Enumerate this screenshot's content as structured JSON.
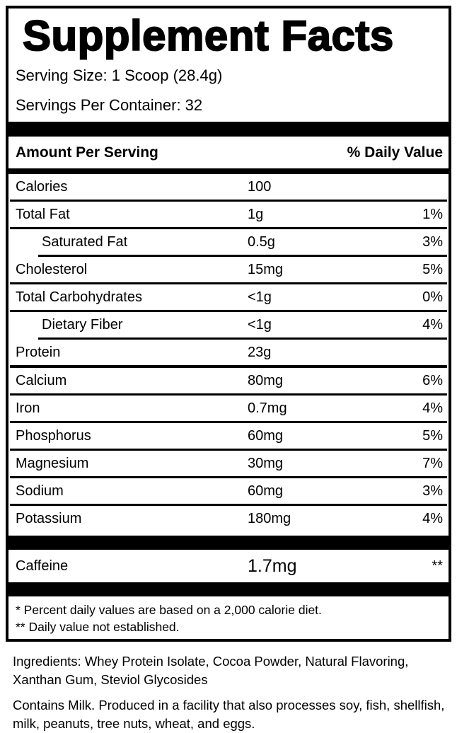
{
  "facts": {
    "title": "Supplement Facts",
    "serving_size": "Serving Size: 1 Scoop (28.4g)",
    "servings_per_container": "Servings Per Container: 32",
    "header": {
      "amount_label": "Amount Per Serving",
      "dv_label": "% Daily Value"
    },
    "rows": [
      {
        "name": "Calories",
        "amount": "100",
        "dv": "",
        "indent": false
      },
      {
        "name": "Total Fat",
        "amount": "1g",
        "dv": "1%",
        "indent": false
      },
      {
        "name": "Saturated Fat",
        "amount": "0.5g",
        "dv": "3%",
        "indent": true
      },
      {
        "name": "Cholesterol",
        "amount": "15mg",
        "dv": "5%",
        "indent": false
      },
      {
        "name": "Total Carbohydrates",
        "amount": "<1g",
        "dv": "0%",
        "indent": false
      },
      {
        "name": "Dietary Fiber",
        "amount": "<1g",
        "dv": "4%",
        "indent": true
      },
      {
        "name": "Protein",
        "amount": "23g",
        "dv": "",
        "indent": false
      },
      {
        "name": "Calcium",
        "amount": "80mg",
        "dv": "6%",
        "indent": false
      },
      {
        "name": "Iron",
        "amount": "0.7mg",
        "dv": "4%",
        "indent": false
      },
      {
        "name": "Phosphorus",
        "amount": "60mg",
        "dv": "5%",
        "indent": false
      },
      {
        "name": "Magnesium",
        "amount": "30mg",
        "dv": "7%",
        "indent": false
      },
      {
        "name": "Sodium",
        "amount": "60mg",
        "dv": "3%",
        "indent": false
      },
      {
        "name": "Potassium",
        "amount": "180mg",
        "dv": "4%",
        "indent": false
      }
    ],
    "caffeine": {
      "name": "Caffeine",
      "amount": "1.7mg",
      "dv": "**"
    },
    "footnotes": [
      "* Percent daily values are based on a 2,000 calorie diet.",
      "** Daily value not established."
    ]
  },
  "ingredients": {
    "text": "Ingredients: Whey Protein Isolate, Cocoa Powder, Natural Flavoring, Xanthan Gum, Steviol Glycosides"
  },
  "allergens": {
    "text": "Contains Milk. Produced in a facility that also processes soy, fish, shellfish, milk, peanuts, tree nuts, wheat, and eggs."
  },
  "colors": {
    "text": "#000000",
    "separator": "#000000",
    "background": "#ffffff"
  }
}
